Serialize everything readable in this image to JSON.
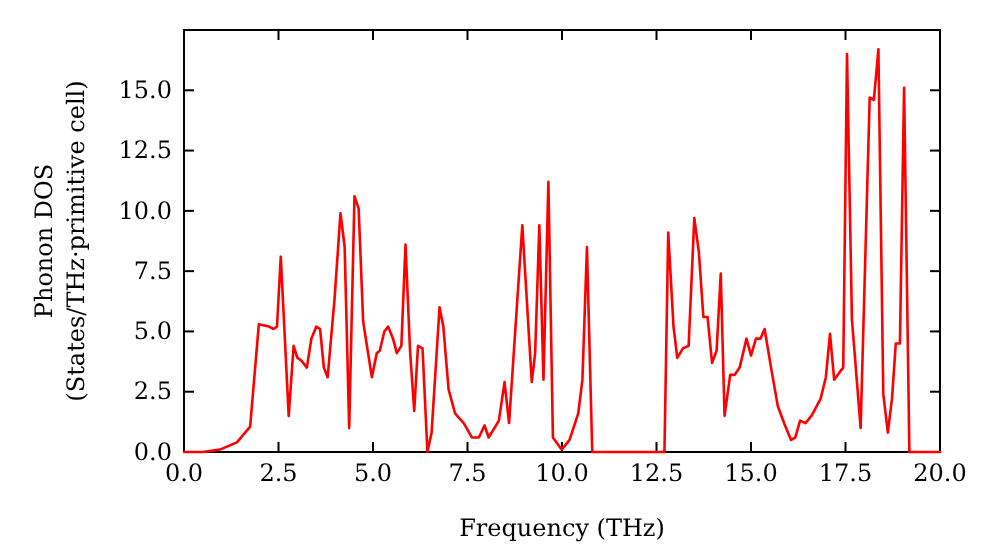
{
  "chart_data": {
    "type": "line",
    "xlabel": "Frequency (THz)",
    "ylabel": "Phonon DOS\n(States/THz·primitive cell)",
    "xlim": [
      0,
      20
    ],
    "ylim": [
      0,
      17.5
    ],
    "xticks": [
      {
        "value": 0,
        "label": "0.0"
      },
      {
        "value": 2.5,
        "label": "2.5"
      },
      {
        "value": 5,
        "label": "5.0"
      },
      {
        "value": 7.5,
        "label": "7.5"
      },
      {
        "value": 10,
        "label": "10.0"
      },
      {
        "value": 12.5,
        "label": "12.5"
      },
      {
        "value": 15,
        "label": "15.0"
      },
      {
        "value": 17.5,
        "label": "17.5"
      },
      {
        "value": 20,
        "label": "20.0"
      }
    ],
    "yticks": [
      {
        "value": 0,
        "label": "0.0"
      },
      {
        "value": 2.5,
        "label": "2.5"
      },
      {
        "value": 5,
        "label": "5.0"
      },
      {
        "value": 7.5,
        "label": "7.5"
      },
      {
        "value": 10,
        "label": "10.0"
      },
      {
        "value": 12.5,
        "label": "12.5"
      },
      {
        "value": 15,
        "label": "15.0"
      }
    ],
    "grid": false,
    "marker": "none",
    "line_style": "solid",
    "series": [
      {
        "color": "#ff0000",
        "x": [
          0,
          0.5,
          0.95,
          1.4,
          1.75,
          1.98,
          2.25,
          2.37,
          2.46,
          2.56,
          2.77,
          2.9,
          3.0,
          3.1,
          3.25,
          3.37,
          3.5,
          3.6,
          3.7,
          3.8,
          3.98,
          4.14,
          4.25,
          4.37,
          4.51,
          4.62,
          4.74,
          4.97,
          5.1,
          5.18,
          5.3,
          5.4,
          5.53,
          5.63,
          5.75,
          5.86,
          5.98,
          6.09,
          6.19,
          6.31,
          6.44,
          6.55,
          6.76,
          6.86,
          7.0,
          7.17,
          7.4,
          7.62,
          7.8,
          7.95,
          8.06,
          8.33,
          8.48,
          8.6,
          8.95,
          9.2,
          9.29,
          9.4,
          9.51,
          9.64,
          9.76,
          9.99,
          10.2,
          10.43,
          10.54,
          10.66,
          10.8,
          12.71,
          12.81,
          12.95,
          13.05,
          13.2,
          13.35,
          13.5,
          13.62,
          13.74,
          13.85,
          13.97,
          14.09,
          14.2,
          14.3,
          14.45,
          14.57,
          14.7,
          14.88,
          15.0,
          15.13,
          15.25,
          15.36,
          15.53,
          15.71,
          15.9,
          16.06,
          16.17,
          16.3,
          16.44,
          16.6,
          16.84,
          16.98,
          17.09,
          17.2,
          17.34,
          17.44,
          17.54,
          17.67,
          17.9,
          18.14,
          18.25,
          18.37,
          18.5,
          18.62,
          18.73,
          18.83,
          18.94,
          19.05,
          19.19,
          20
        ],
        "values": [
          0,
          0,
          0.1,
          0.4,
          1.05,
          5.3,
          5.2,
          5.1,
          5.2,
          8.1,
          1.5,
          4.4,
          3.9,
          3.8,
          3.5,
          4.7,
          5.2,
          5.1,
          3.5,
          3.1,
          6.3,
          9.9,
          8.5,
          1.0,
          10.6,
          10.1,
          5.4,
          3.1,
          4.1,
          4.2,
          5.0,
          5.2,
          4.7,
          4.1,
          4.4,
          8.6,
          4.2,
          1.7,
          4.4,
          4.3,
          0,
          0.8,
          6.0,
          5.2,
          2.6,
          1.6,
          1.2,
          0.6,
          0.6,
          1.1,
          0.6,
          1.3,
          2.9,
          1.2,
          9.4,
          2.9,
          4.1,
          9.4,
          3.0,
          11.2,
          0.6,
          0.1,
          0.5,
          1.6,
          3.0,
          8.5,
          0,
          0,
          9.1,
          5.2,
          3.9,
          4.3,
          4.4,
          9.7,
          8.3,
          5.6,
          5.6,
          3.7,
          4.2,
          7.4,
          1.5,
          3.2,
          3.2,
          3.5,
          4.7,
          4.0,
          4.7,
          4.7,
          5.1,
          3.5,
          1.9,
          1.1,
          0.5,
          0.6,
          1.3,
          1.2,
          1.5,
          2.2,
          3.1,
          4.9,
          3.0,
          3.3,
          3.5,
          16.5,
          5.5,
          1.0,
          14.7,
          14.6,
          16.7,
          2.4,
          0.8,
          2.2,
          4.5,
          4.5,
          15.1,
          0,
          0
        ]
      }
    ]
  }
}
